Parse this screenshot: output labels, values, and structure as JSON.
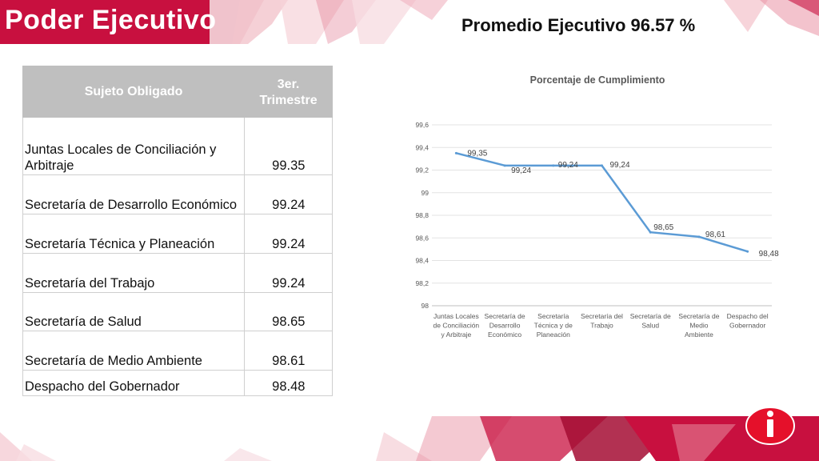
{
  "header": {
    "title": "Poder Ejecutivo",
    "promedio": "Promedio Ejecutivo 96.57 %"
  },
  "table": {
    "headers": [
      "Sujeto Obligado",
      "3er. Trimestre"
    ],
    "rows": [
      {
        "name": "Juntas Locales de Conciliación  y Arbitraje",
        "value": "99.35"
      },
      {
        "name": "Secretaría de Desarrollo Económico",
        "value": "99.24"
      },
      {
        "name": "Secretaría Técnica y Planeación",
        "value": "99.24"
      },
      {
        "name": "Secretaría del Trabajo",
        "value": "99.24"
      },
      {
        "name": "Secretaría de Salud",
        "value": "98.65"
      },
      {
        "name": "Secretaría de Medio Ambiente",
        "value": "98.61"
      },
      {
        "name": "Despacho del Gobernador",
        "value": "98.48"
      }
    ]
  },
  "chart_data": {
    "type": "line",
    "title": "Porcentaje de Cumplimiento",
    "categories": [
      [
        "Juntas Locales",
        "de Conciliación",
        "y Arbitraje"
      ],
      [
        "Secretaría de",
        "Desarrollo",
        "Económico"
      ],
      [
        "Secretaría",
        "Técnica y de",
        "Planeación"
      ],
      [
        "Secretaría del",
        "Trabajo"
      ],
      [
        "Secretaría de",
        "Salud"
      ],
      [
        "Secretaría de",
        "Medio",
        "Ambiente"
      ],
      [
        "Despacho del",
        "Gobernador"
      ]
    ],
    "values": [
      99.35,
      99.24,
      99.24,
      99.24,
      98.65,
      98.61,
      98.48
    ],
    "data_labels": [
      "99,35",
      "99,24",
      "99,24",
      "99,24",
      "98,65",
      "98,61",
      "98,48"
    ],
    "yticks": [
      "99,6",
      "99,4",
      "99,2",
      "99",
      "98,8",
      "98,6",
      "98,4",
      "98,2",
      "98"
    ],
    "ylim": [
      98,
      99.6
    ],
    "grid": true,
    "line_color": "#5b9bd5"
  },
  "logo": {
    "icon": "info-i-icon",
    "color": "#e5102a"
  }
}
